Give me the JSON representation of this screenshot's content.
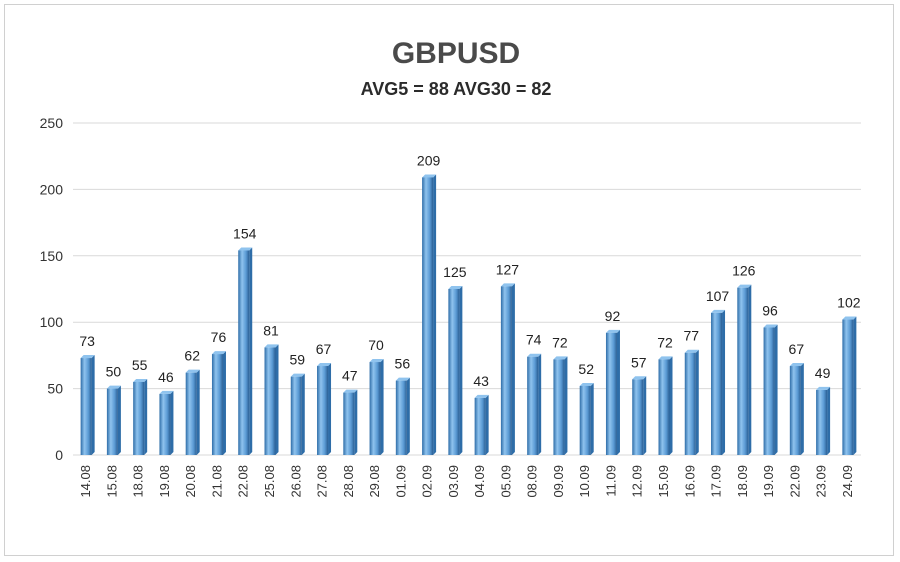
{
  "chart_data": {
    "type": "bar",
    "title": "GBPUSD",
    "subtitle": "AVG5 = 88 AVG30 = 82",
    "xlabel": "",
    "ylabel": "",
    "ylim": [
      0,
      250
    ],
    "yticks": [
      0,
      50,
      100,
      150,
      200,
      250
    ],
    "grid": true,
    "legend": "none",
    "categories": [
      "14.08",
      "15.08",
      "18.08",
      "19.08",
      "20.08",
      "21.08",
      "22.08",
      "25.08",
      "26.08",
      "27.08",
      "28.08",
      "29.08",
      "01.09",
      "02.09",
      "03.09",
      "04.09",
      "05.09",
      "08.09",
      "09.09",
      "10.09",
      "11.09",
      "12.09",
      "15.09",
      "16.09",
      "17.09",
      "18.09",
      "19.09",
      "22.09",
      "23.09",
      "24.09"
    ],
    "values": [
      73,
      50,
      55,
      46,
      62,
      76,
      154,
      81,
      59,
      67,
      47,
      70,
      56,
      209,
      125,
      43,
      127,
      74,
      72,
      52,
      92,
      57,
      72,
      77,
      107,
      126,
      96,
      67,
      49,
      102
    ],
    "colors": {
      "bar_light": "#8fc3ee",
      "bar_mid": "#5b9bd5",
      "bar_dark": "#2e6da8",
      "grid": "#d9d9d9"
    }
  }
}
